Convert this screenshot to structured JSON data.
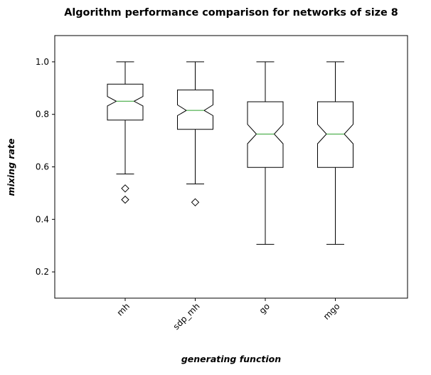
{
  "chart_data": {
    "type": "boxplot",
    "title": "Algorithm performance comparison for networks of size 8",
    "xlabel": "generating function",
    "ylabel": "mixing rate",
    "categories": [
      "mh",
      "sdp_mh",
      "go",
      "mgo"
    ],
    "ylim": [
      0.1,
      1.1
    ],
    "yticks": [
      0.2,
      0.4,
      0.6,
      0.8,
      1.0
    ],
    "ytick_labels": [
      "0.2",
      "0.4",
      "0.6",
      "0.8",
      "1.0"
    ],
    "notched": true,
    "grid": false,
    "series": [
      {
        "category": "mh",
        "whisker_low": 0.573,
        "q1": 0.778,
        "median": 0.85,
        "q3": 0.915,
        "whisker_high": 1.0,
        "notch_low": 0.832,
        "notch_high": 0.868,
        "outliers": [
          0.518,
          0.475
        ]
      },
      {
        "category": "sdp_mh",
        "whisker_low": 0.535,
        "q1": 0.743,
        "median": 0.815,
        "q3": 0.893,
        "whisker_high": 1.0,
        "notch_low": 0.795,
        "notch_high": 0.836,
        "outliers": [
          0.465
        ]
      },
      {
        "category": "go",
        "whisker_low": 0.305,
        "q1": 0.598,
        "median": 0.725,
        "q3": 0.848,
        "whisker_high": 1.0,
        "notch_low": 0.688,
        "notch_high": 0.762,
        "outliers": []
      },
      {
        "category": "mgo",
        "whisker_low": 0.305,
        "q1": 0.598,
        "median": 0.725,
        "q3": 0.848,
        "whisker_high": 1.0,
        "notch_low": 0.688,
        "notch_high": 0.762,
        "outliers": []
      }
    ],
    "colors": {
      "box": "#000000",
      "median": "#2ca02c",
      "background": "#ffffff"
    }
  }
}
